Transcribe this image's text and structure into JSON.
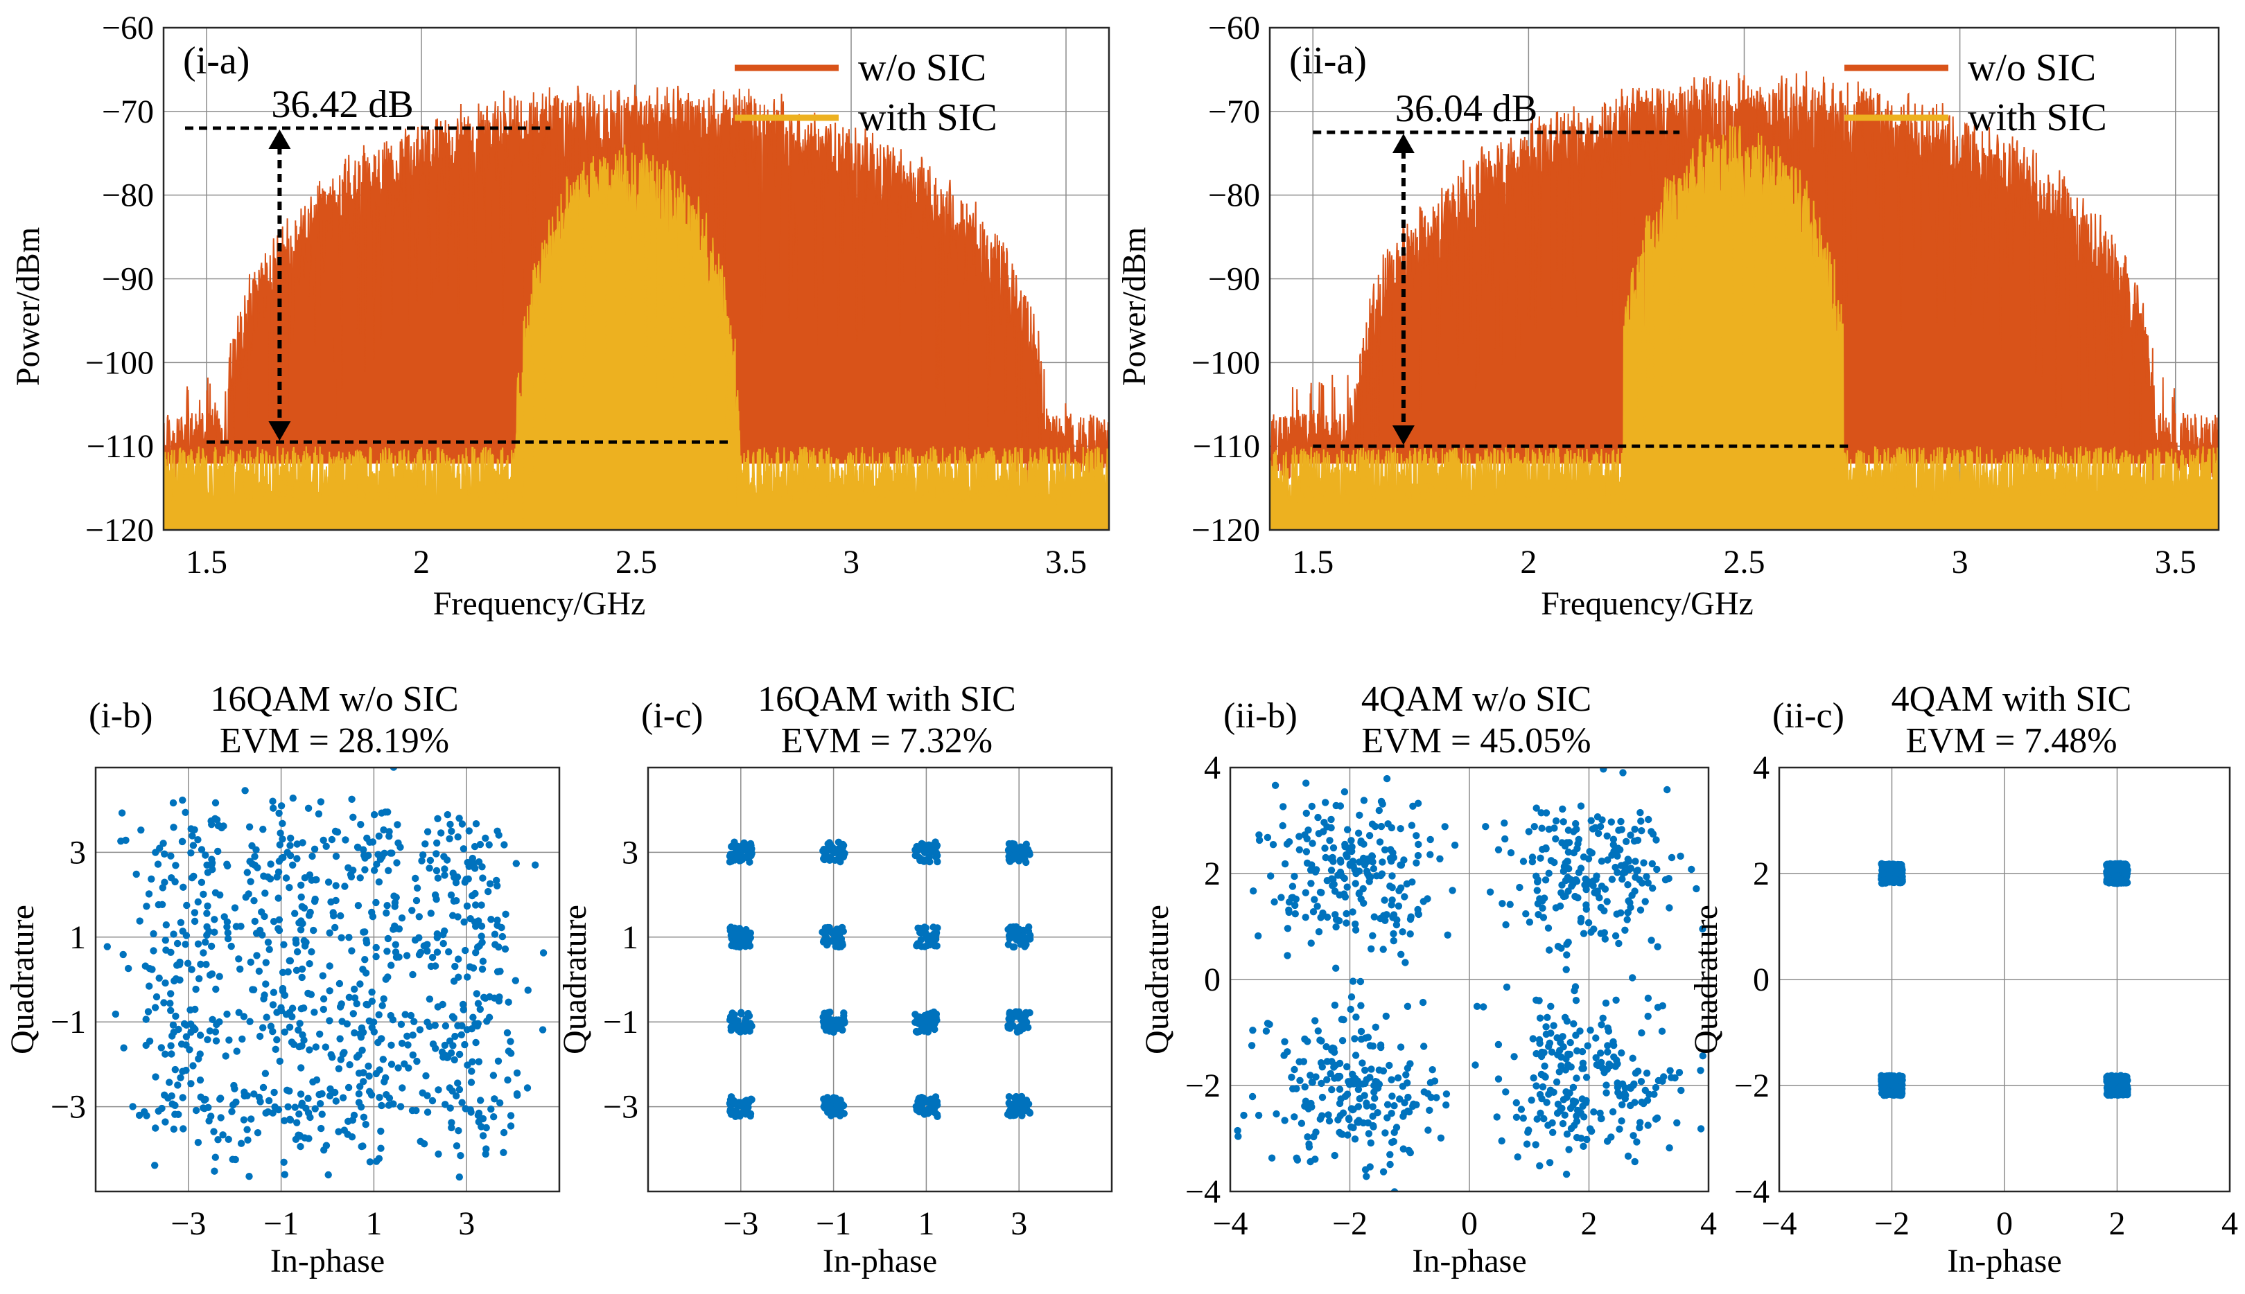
{
  "figure": {
    "colors": {
      "wo": "#D95319",
      "with": "#EDB120",
      "dots": "#0072BD",
      "annot": "#000000"
    }
  },
  "chart_data": [
    {
      "id": "i-a",
      "type": "line",
      "panel_label": "(i-a)",
      "xlabel": "Frequency/GHz",
      "ylabel": "Power/dBm",
      "xlim": [
        1.4,
        3.6
      ],
      "ylim": [
        -120,
        -60
      ],
      "xticks": [
        1.5,
        2,
        2.5,
        3,
        3.5
      ],
      "xtick_labels": [
        "1.5",
        "2",
        "2.5",
        "3",
        "3.5"
      ],
      "yticks": [
        -120,
        -110,
        -100,
        -90,
        -80,
        -70,
        -60
      ],
      "ytick_labels": [
        "−120",
        "−110",
        "−100",
        "−90",
        "−80",
        "−70",
        "−60"
      ],
      "legend": [
        "w/o SIC",
        "with SIC"
      ],
      "legend_loc": "top-right",
      "series": [
        {
          "name": "w/o SIC",
          "color": "#D95319",
          "band": [
            1.4,
            3.6
          ],
          "shoulder": [
            1.55,
            3.45
          ],
          "peak": -68,
          "floor": -110,
          "seed": 11
        },
        {
          "name": "with SIC",
          "color": "#EDB120",
          "band": [
            2.25,
            2.72
          ],
          "shoulder": [
            2.22,
            2.74
          ],
          "peak": -75,
          "floor": -116,
          "seed": 23
        }
      ],
      "annotation": {
        "text": "36.42 dB",
        "x": 1.67,
        "y_top": -72,
        "y_bottom": -109.5,
        "hline_top": [
          1.45,
          2.3
        ],
        "hline_bottom": [
          1.5,
          2.72
        ]
      }
    },
    {
      "id": "ii-a",
      "type": "line",
      "panel_label": "(ii-a)",
      "xlabel": "Frequency/GHz",
      "ylabel": "Power/dBm",
      "xlim": [
        1.4,
        3.6
      ],
      "ylim": [
        -120,
        -60
      ],
      "xticks": [
        1.5,
        2,
        2.5,
        3,
        3.5
      ],
      "xtick_labels": [
        "1.5",
        "2",
        "2.5",
        "3",
        "3.5"
      ],
      "yticks": [
        -120,
        -110,
        -100,
        -90,
        -80,
        -70,
        -60
      ],
      "ytick_labels": [
        "−120",
        "−110",
        "−100",
        "−90",
        "−80",
        "−70",
        "−60"
      ],
      "legend": [
        "w/o SIC",
        "with SIC"
      ],
      "legend_loc": "top-right",
      "series": [
        {
          "name": "w/o SIC",
          "color": "#D95319",
          "band": [
            1.4,
            3.6
          ],
          "shoulder": [
            1.6,
            3.45
          ],
          "peak": -67,
          "floor": -110,
          "seed": 37
        },
        {
          "name": "with SIC",
          "color": "#EDB120",
          "band": [
            2.25,
            2.7
          ],
          "shoulder": [
            2.2,
            2.75
          ],
          "peak": -73,
          "floor": -116,
          "seed": 51
        }
      ],
      "annotation": {
        "text": "36.04 dB",
        "x": 1.71,
        "y_top": -72.5,
        "y_bottom": -110,
        "hline_top": [
          1.5,
          2.35
        ],
        "hline_bottom": [
          1.5,
          2.75
        ]
      }
    },
    {
      "id": "i-b",
      "type": "scatter",
      "panel_label": "(i-b)",
      "title": [
        "16QAM w/o SIC",
        "EVM = 28.19%"
      ],
      "evm_percent": 28.19,
      "xlabel": "In-phase",
      "ylabel": "Quadrature",
      "xlim": [
        -5,
        5
      ],
      "ylim": [
        -5,
        5
      ],
      "ticks": [
        -3,
        -1,
        1,
        3
      ],
      "tick_labels": [
        "−3",
        "−1",
        "1",
        "3"
      ],
      "constellation": [
        -3,
        -1,
        1,
        3
      ],
      "spread": 0.85,
      "n_per_point": 55,
      "seed": 101
    },
    {
      "id": "i-c",
      "type": "scatter",
      "panel_label": "(i-c)",
      "title": [
        "16QAM with SIC",
        "EVM = 7.32%"
      ],
      "evm_percent": 7.32,
      "xlabel": "In-phase",
      "ylabel": "Quadrature",
      "xlim": [
        -5,
        5
      ],
      "ylim": [
        -5,
        5
      ],
      "ticks": [
        -3,
        -1,
        1,
        3
      ],
      "tick_labels": [
        "−3",
        "−1",
        "1",
        "3"
      ],
      "constellation": [
        -3,
        -1,
        1,
        3
      ],
      "spread": 0.22,
      "n_per_point": 45,
      "seed": 202
    },
    {
      "id": "ii-b",
      "type": "scatter",
      "panel_label": "(ii-b)",
      "title": [
        "4QAM w/o SIC",
        "EVM = 45.05%"
      ],
      "evm_percent": 45.05,
      "xlabel": "In-phase",
      "ylabel": "Quadrature",
      "xlim": [
        -4,
        4
      ],
      "ylim": [
        -4,
        4
      ],
      "ticks": [
        -4,
        -2,
        0,
        2,
        4
      ],
      "tick_labels": [
        "−4",
        "−2",
        "0",
        "2",
        "4"
      ],
      "constellation": [
        -2,
        2
      ],
      "spread": 1.0,
      "n_per_point": 220,
      "seed": 303
    },
    {
      "id": "ii-c",
      "type": "scatter",
      "panel_label": "(ii-c)",
      "title": [
        "4QAM with SIC",
        "EVM = 7.48%"
      ],
      "evm_percent": 7.48,
      "xlabel": "In-phase",
      "ylabel": "Quadrature",
      "xlim": [
        -4,
        4
      ],
      "ylim": [
        -4,
        4
      ],
      "ticks": [
        -4,
        -2,
        0,
        2,
        4
      ],
      "tick_labels": [
        "−4",
        "−2",
        "0",
        "2",
        "4"
      ],
      "constellation": [
        -2,
        2
      ],
      "spread": 0.17,
      "n_per_point": 260,
      "seed": 404
    }
  ]
}
